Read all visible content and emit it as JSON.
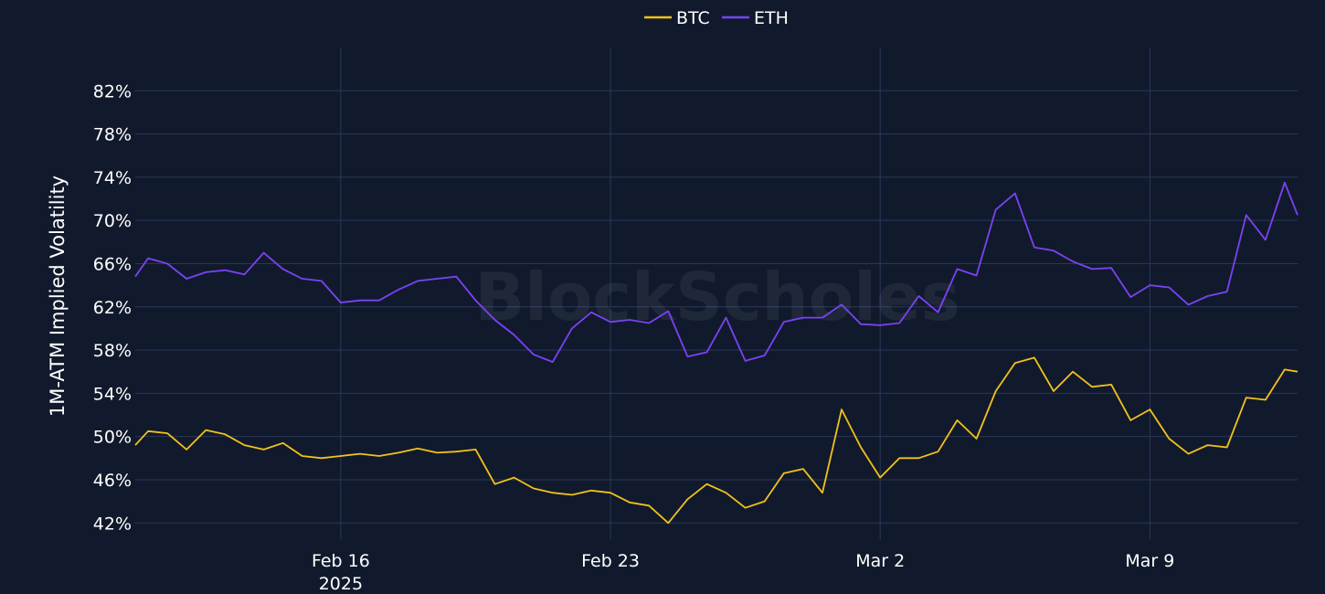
{
  "chart_data": {
    "type": "line",
    "title": "",
    "ylabel": "1M-ATM Implied Volatility",
    "xlabel": "",
    "watermark": "BlockScholes",
    "legend_position": "top-center",
    "ylim": [
      40.5,
      86
    ],
    "y_ticks": [
      42,
      46,
      50,
      54,
      58,
      62,
      66,
      70,
      74,
      78,
      82
    ],
    "y_tick_suffix": "%",
    "xlim": [
      "2025-02-10T16:00",
      "2025-03-12T20:00"
    ],
    "x_ticks": [
      {
        "date": "2025-02-16",
        "label": "Feb 16",
        "sublabel": "2025"
      },
      {
        "date": "2025-02-23",
        "label": "Feb 23",
        "sublabel": ""
      },
      {
        "date": "2025-03-02",
        "label": "Mar 2",
        "sublabel": ""
      },
      {
        "date": "2025-03-09",
        "label": "Mar 9",
        "sublabel": ""
      }
    ],
    "grid": true,
    "series": [
      {
        "name": "BTC",
        "color": "#f2c21b",
        "x": [
          "2025-02-10T16:00",
          "2025-02-11T00:00",
          "2025-02-11T12:00",
          "2025-02-12T00:00",
          "2025-02-12T12:00",
          "2025-02-13T00:00",
          "2025-02-13T12:00",
          "2025-02-14T00:00",
          "2025-02-14T12:00",
          "2025-02-15T00:00",
          "2025-02-15T12:00",
          "2025-02-16T00:00",
          "2025-02-16T12:00",
          "2025-02-17T00:00",
          "2025-02-17T12:00",
          "2025-02-18T00:00",
          "2025-02-18T12:00",
          "2025-02-19T00:00",
          "2025-02-19T12:00",
          "2025-02-20T00:00",
          "2025-02-20T12:00",
          "2025-02-21T00:00",
          "2025-02-21T12:00",
          "2025-02-22T00:00",
          "2025-02-22T12:00",
          "2025-02-23T00:00",
          "2025-02-23T12:00",
          "2025-02-24T00:00",
          "2025-02-24T12:00",
          "2025-02-25T00:00",
          "2025-02-25T12:00",
          "2025-02-26T00:00",
          "2025-02-26T12:00",
          "2025-02-27T00:00",
          "2025-02-27T12:00",
          "2025-02-28T00:00",
          "2025-02-28T12:00",
          "2025-03-01T00:00",
          "2025-03-01T12:00",
          "2025-03-02T00:00",
          "2025-03-02T12:00",
          "2025-03-03T00:00",
          "2025-03-03T12:00",
          "2025-03-04T00:00",
          "2025-03-04T12:00",
          "2025-03-05T00:00",
          "2025-03-05T12:00",
          "2025-03-06T00:00",
          "2025-03-06T12:00",
          "2025-03-07T00:00",
          "2025-03-07T12:00",
          "2025-03-08T00:00",
          "2025-03-08T12:00",
          "2025-03-09T00:00",
          "2025-03-09T12:00",
          "2025-03-10T00:00",
          "2025-03-10T12:00",
          "2025-03-11T00:00",
          "2025-03-11T12:00",
          "2025-03-12T00:00",
          "2025-03-12T12:00",
          "2025-03-12T20:00"
        ],
        "y": [
          49.2,
          50.5,
          50.3,
          48.8,
          50.6,
          50.2,
          49.2,
          48.8,
          49.4,
          48.2,
          48.0,
          48.2,
          48.4,
          48.2,
          48.5,
          48.9,
          48.5,
          48.6,
          48.8,
          45.6,
          46.2,
          45.2,
          44.8,
          44.6,
          45.0,
          44.8,
          43.9,
          43.6,
          42.0,
          44.2,
          45.6,
          44.8,
          43.4,
          44.0,
          46.6,
          47.0,
          44.8,
          52.5,
          49.0,
          46.2,
          48.0,
          48.0,
          48.6,
          51.5,
          49.8,
          54.2,
          56.8,
          57.3,
          54.2,
          56.0,
          54.6,
          54.8,
          51.5,
          52.5,
          49.8,
          48.4,
          49.2,
          49.0,
          53.6,
          53.4,
          56.2,
          56.0
        ]
      },
      {
        "name": "ETH",
        "color": "#7b42f5",
        "x": [
          "2025-02-10T16:00",
          "2025-02-11T00:00",
          "2025-02-11T12:00",
          "2025-02-12T00:00",
          "2025-02-12T12:00",
          "2025-02-13T00:00",
          "2025-02-13T12:00",
          "2025-02-14T00:00",
          "2025-02-14T12:00",
          "2025-02-15T00:00",
          "2025-02-15T12:00",
          "2025-02-16T00:00",
          "2025-02-16T12:00",
          "2025-02-17T00:00",
          "2025-02-17T12:00",
          "2025-02-18T00:00",
          "2025-02-18T12:00",
          "2025-02-19T00:00",
          "2025-02-19T12:00",
          "2025-02-20T00:00",
          "2025-02-20T12:00",
          "2025-02-21T00:00",
          "2025-02-21T12:00",
          "2025-02-22T00:00",
          "2025-02-22T12:00",
          "2025-02-23T00:00",
          "2025-02-23T12:00",
          "2025-02-24T00:00",
          "2025-02-24T12:00",
          "2025-02-25T00:00",
          "2025-02-25T12:00",
          "2025-02-26T00:00",
          "2025-02-26T12:00",
          "2025-02-27T00:00",
          "2025-02-27T12:00",
          "2025-02-28T00:00",
          "2025-02-28T12:00",
          "2025-03-01T00:00",
          "2025-03-01T12:00",
          "2025-03-02T00:00",
          "2025-03-02T12:00",
          "2025-03-03T00:00",
          "2025-03-03T12:00",
          "2025-03-04T00:00",
          "2025-03-04T12:00",
          "2025-03-05T00:00",
          "2025-03-05T12:00",
          "2025-03-06T00:00",
          "2025-03-06T12:00",
          "2025-03-07T00:00",
          "2025-03-07T12:00",
          "2025-03-08T00:00",
          "2025-03-08T12:00",
          "2025-03-09T00:00",
          "2025-03-09T12:00",
          "2025-03-10T00:00",
          "2025-03-10T12:00",
          "2025-03-11T00:00",
          "2025-03-11T12:00",
          "2025-03-12T00:00",
          "2025-03-12T12:00",
          "2025-03-12T20:00"
        ],
        "y": [
          64.8,
          66.5,
          66.0,
          64.6,
          65.2,
          65.4,
          65.0,
          67.0,
          65.5,
          64.6,
          64.4,
          62.4,
          62.6,
          62.6,
          63.6,
          64.4,
          64.6,
          64.8,
          62.6,
          60.8,
          59.4,
          57.6,
          56.9,
          60.0,
          61.5,
          60.6,
          60.8,
          60.5,
          61.6,
          57.4,
          57.8,
          61.0,
          57.0,
          57.5,
          60.6,
          61.0,
          61.0,
          62.2,
          60.4,
          60.3,
          60.5,
          63.0,
          61.5,
          65.5,
          64.9,
          71.0,
          72.5,
          67.5,
          67.2,
          66.2,
          65.5,
          65.6,
          62.9,
          64.0,
          63.8,
          62.2,
          63.0,
          63.4,
          70.5,
          68.2,
          73.5,
          70.5
        ]
      }
    ]
  }
}
